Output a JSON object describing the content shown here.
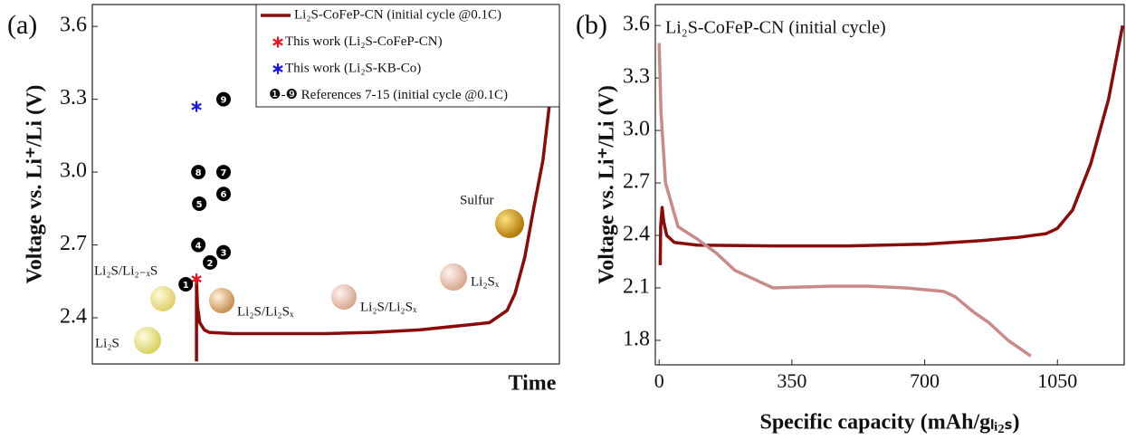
{
  "chart_data": [
    {
      "type": "line",
      "panel_label": "(a)",
      "xlabel": "Time",
      "ylabel": "Voltage vs. Li⁺/Li (V)",
      "xlim": [
        0,
        100
      ],
      "ylim": [
        2.21,
        3.69
      ],
      "yticks": [
        2.4,
        2.7,
        {
          "value": 3,
          "label": "3.0"
        },
        3.3,
        3.6
      ],
      "series": [
        {
          "name": "Li₂S-CoFeP-CN (initial cycle @0.1C)",
          "color": "#8b0a0a",
          "x": [
            22.3,
            22.3,
            22.5,
            23,
            24,
            25,
            30,
            40,
            50,
            60,
            70,
            80,
            85,
            88.8,
            90.5,
            92.6,
            94.5,
            96.5,
            98,
            99.6
          ],
          "values": [
            2.22,
            2.56,
            2.45,
            2.38,
            2.35,
            2.34,
            2.335,
            2.335,
            2.335,
            2.34,
            2.35,
            2.37,
            2.38,
            2.43,
            2.5,
            2.65,
            2.85,
            3.05,
            3.3,
            3.6
          ]
        },
        {
          "type": "scatter",
          "marker": "star",
          "name": "This work (Li₂S-CoFeP-CN)",
          "color": "#e8141c",
          "x": [
            22.3
          ],
          "values": [
            2.56
          ]
        },
        {
          "type": "scatter",
          "marker": "star",
          "name": "This work (Li₂S-KB-Co)",
          "color": "#1a1ae0",
          "x": [
            22.3
          ],
          "values": [
            3.27
          ]
        },
        {
          "type": "scatter",
          "marker": "circle",
          "name": "❶-❾ References 7-15 (initial cycle @0.1C)",
          "color": "#000000",
          "x": [
            20,
            25.2,
            28.1,
            22.7,
            22.9,
            28.1,
            28.1,
            22.7,
            28.1
          ],
          "values": [
            2.538,
            2.628,
            2.67,
            2.7,
            2.87,
            2.91,
            3.0,
            3.0,
            3.3
          ],
          "point_labels": [
            "1",
            "2",
            "3",
            "4",
            "5",
            "6",
            "7",
            "8",
            "9"
          ]
        }
      ],
      "annotations": [
        "Li₂S",
        "Li₂S/Li₂₋ₓS",
        "Li₂S/Li₂Sₓ",
        "Li₂S/Li₂Sₓ",
        "Li₂Sₓ",
        "Sulfur"
      ]
    },
    {
      "type": "line",
      "panel_label": "(b)",
      "title": "Li₂S-CoFeP-CN (initial cycle)",
      "xlabel": "Specific capacity (mAh/gₗᵢ₂ₛ)",
      "ylabel": "Voltage vs. Li⁺/Li (V)",
      "xlim": [
        -10,
        1226
      ],
      "ylim": [
        1.66,
        3.72
      ],
      "xticks": [
        0,
        350,
        700,
        1050
      ],
      "yticks": [
        1.8,
        2.1,
        2.4,
        2.7,
        {
          "value": 3,
          "label": "3.0"
        },
        3.3,
        3.6
      ],
      "series": [
        {
          "color": "#8b0a0a",
          "x": [
            3,
            4,
            8,
            12,
            20,
            40,
            100,
            300,
            500,
            700,
            850,
            950,
            1020,
            1050,
            1090,
            1138,
            1185,
            1222
          ],
          "values": [
            2.23,
            2.45,
            2.56,
            2.48,
            2.4,
            2.36,
            2.345,
            2.34,
            2.34,
            2.35,
            2.37,
            2.39,
            2.41,
            2.44,
            2.545,
            2.81,
            3.18,
            3.6
          ]
        },
        {
          "color": "#c98a8a",
          "x": [
            0,
            5,
            17,
            50,
            100,
            150,
            200,
            250,
            300,
            450,
            550,
            650,
            750,
            780,
            830,
            870,
            920,
            980
          ],
          "values": [
            3.5,
            3.1,
            2.7,
            2.45,
            2.38,
            2.3,
            2.2,
            2.15,
            2.1,
            2.11,
            2.11,
            2.1,
            2.08,
            2.05,
            1.96,
            1.9,
            1.8,
            1.71
          ]
        }
      ]
    }
  ]
}
